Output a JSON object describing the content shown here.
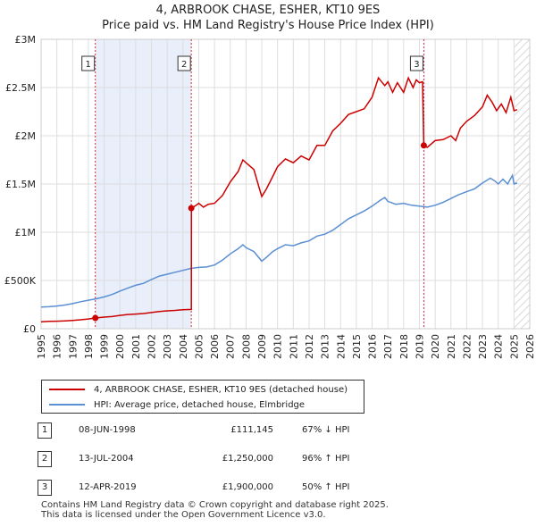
{
  "chart_data": {
    "type": "line",
    "title": "4, ARBROOK CHASE, ESHER, KT10 9ES",
    "subtitle": "Price paid vs. HM Land Registry's House Price Index (HPI)",
    "xlim": [
      1995,
      2026
    ],
    "ylim": [
      0,
      3000000
    ],
    "x_ticks": [
      "1995",
      "1996",
      "1997",
      "1998",
      "1999",
      "2000",
      "2001",
      "2002",
      "2003",
      "2004",
      "2005",
      "2006",
      "2007",
      "2008",
      "2009",
      "2010",
      "2011",
      "2012",
      "2013",
      "2014",
      "2015",
      "2016",
      "2017",
      "2018",
      "2019",
      "2020",
      "2021",
      "2022",
      "2023",
      "2024",
      "2025",
      "2026"
    ],
    "y_ticks": [
      {
        "value": 0,
        "label": "£0"
      },
      {
        "value": 500000,
        "label": "£500K"
      },
      {
        "value": 1000000,
        "label": "£1M"
      },
      {
        "value": 1500000,
        "label": "£1.5M"
      },
      {
        "value": 2000000,
        "label": "£2M"
      },
      {
        "value": 2500000,
        "label": "£2.5M"
      },
      {
        "value": 3000000,
        "label": "£3M"
      }
    ],
    "shaded_periods": [
      [
        1998.44,
        2004.53
      ],
      [
        2019.28,
        2019.35
      ]
    ],
    "future_hatch_from": 2025.0,
    "series": [
      {
        "name": "4, ARBROOK CHASE, ESHER, KT10 9ES (detached house)",
        "color": "#cc0000",
        "points": [
          [
            1995,
            72000
          ],
          [
            1995.5,
            76000
          ],
          [
            1996,
            78000
          ],
          [
            1996.5,
            81000
          ],
          [
            1997,
            86000
          ],
          [
            1997.5,
            93000
          ],
          [
            1998,
            101000
          ],
          [
            1998.44,
            111145
          ],
          [
            1998.6,
            113000
          ],
          [
            1999,
            120000
          ],
          [
            1999.5,
            126000
          ],
          [
            2000,
            138000
          ],
          [
            2000.5,
            147000
          ],
          [
            2001,
            152000
          ],
          [
            2001.5,
            157000
          ],
          [
            2002,
            168000
          ],
          [
            2002.5,
            178000
          ],
          [
            2003,
            185000
          ],
          [
            2003.5,
            190000
          ],
          [
            2004,
            196000
          ],
          [
            2004.53,
            200000
          ],
          [
            2004.54,
            1250000
          ],
          [
            2004.8,
            1275000
          ],
          [
            2005,
            1300000
          ],
          [
            2005.3,
            1260000
          ],
          [
            2005.6,
            1290000
          ],
          [
            2006,
            1300000
          ],
          [
            2006.5,
            1380000
          ],
          [
            2007,
            1520000
          ],
          [
            2007.5,
            1630000
          ],
          [
            2007.8,
            1750000
          ],
          [
            2008,
            1720000
          ],
          [
            2008.5,
            1650000
          ],
          [
            2008.8,
            1480000
          ],
          [
            2009,
            1370000
          ],
          [
            2009.3,
            1450000
          ],
          [
            2009.7,
            1580000
          ],
          [
            2010,
            1680000
          ],
          [
            2010.5,
            1760000
          ],
          [
            2011,
            1720000
          ],
          [
            2011.5,
            1790000
          ],
          [
            2012,
            1750000
          ],
          [
            2012.5,
            1900000
          ],
          [
            2013,
            1900000
          ],
          [
            2013.5,
            2050000
          ],
          [
            2014,
            2130000
          ],
          [
            2014.5,
            2220000
          ],
          [
            2015,
            2250000
          ],
          [
            2015.5,
            2280000
          ],
          [
            2016,
            2400000
          ],
          [
            2016.4,
            2600000
          ],
          [
            2016.8,
            2520000
          ],
          [
            2017,
            2560000
          ],
          [
            2017.3,
            2450000
          ],
          [
            2017.6,
            2550000
          ],
          [
            2018,
            2450000
          ],
          [
            2018.3,
            2600000
          ],
          [
            2018.6,
            2500000
          ],
          [
            2018.8,
            2580000
          ],
          [
            2019.0,
            2550000
          ],
          [
            2019.2,
            2560000
          ],
          [
            2019.28,
            1900000
          ],
          [
            2019.5,
            1880000
          ],
          [
            2020,
            1950000
          ],
          [
            2020.5,
            1960000
          ],
          [
            2021,
            2000000
          ],
          [
            2021.3,
            1950000
          ],
          [
            2021.6,
            2080000
          ],
          [
            2022,
            2150000
          ],
          [
            2022.5,
            2210000
          ],
          [
            2023,
            2300000
          ],
          [
            2023.3,
            2420000
          ],
          [
            2023.6,
            2350000
          ],
          [
            2023.9,
            2260000
          ],
          [
            2024.2,
            2330000
          ],
          [
            2024.5,
            2240000
          ],
          [
            2024.8,
            2400000
          ],
          [
            2025,
            2260000
          ],
          [
            2025.2,
            2270000
          ]
        ]
      },
      {
        "name": "HPI: Average price, detached house, Elmbridge",
        "color": "#5b8fd4",
        "points": [
          [
            1995,
            225000
          ],
          [
            1995.5,
            228000
          ],
          [
            1996,
            235000
          ],
          [
            1996.5,
            245000
          ],
          [
            1997,
            260000
          ],
          [
            1997.5,
            280000
          ],
          [
            1998,
            295000
          ],
          [
            1998.5,
            310000
          ],
          [
            1999,
            330000
          ],
          [
            1999.5,
            355000
          ],
          [
            2000,
            390000
          ],
          [
            2000.5,
            420000
          ],
          [
            2001,
            450000
          ],
          [
            2001.5,
            470000
          ],
          [
            2002,
            510000
          ],
          [
            2002.5,
            545000
          ],
          [
            2003,
            565000
          ],
          [
            2003.5,
            585000
          ],
          [
            2004,
            605000
          ],
          [
            2004.5,
            625000
          ],
          [
            2005,
            635000
          ],
          [
            2005.5,
            640000
          ],
          [
            2006,
            660000
          ],
          [
            2006.5,
            710000
          ],
          [
            2007,
            775000
          ],
          [
            2007.5,
            830000
          ],
          [
            2007.8,
            870000
          ],
          [
            2008,
            840000
          ],
          [
            2008.5,
            800000
          ],
          [
            2009,
            700000
          ],
          [
            2009.3,
            740000
          ],
          [
            2009.7,
            800000
          ],
          [
            2010,
            830000
          ],
          [
            2010.5,
            870000
          ],
          [
            2011,
            860000
          ],
          [
            2011.5,
            890000
          ],
          [
            2012,
            910000
          ],
          [
            2012.5,
            960000
          ],
          [
            2013,
            980000
          ],
          [
            2013.5,
            1020000
          ],
          [
            2014,
            1080000
          ],
          [
            2014.5,
            1140000
          ],
          [
            2015,
            1180000
          ],
          [
            2015.5,
            1220000
          ],
          [
            2016,
            1270000
          ],
          [
            2016.5,
            1330000
          ],
          [
            2016.8,
            1360000
          ],
          [
            2017,
            1320000
          ],
          [
            2017.5,
            1290000
          ],
          [
            2018,
            1300000
          ],
          [
            2018.5,
            1280000
          ],
          [
            2019,
            1270000
          ],
          [
            2019.5,
            1260000
          ],
          [
            2020,
            1280000
          ],
          [
            2020.5,
            1310000
          ],
          [
            2021,
            1350000
          ],
          [
            2021.5,
            1390000
          ],
          [
            2022,
            1420000
          ],
          [
            2022.5,
            1450000
          ],
          [
            2023,
            1510000
          ],
          [
            2023.5,
            1560000
          ],
          [
            2023.8,
            1530000
          ],
          [
            2024,
            1500000
          ],
          [
            2024.3,
            1550000
          ],
          [
            2024.6,
            1500000
          ],
          [
            2024.9,
            1590000
          ],
          [
            2025,
            1500000
          ],
          [
            2025.2,
            1510000
          ]
        ]
      }
    ],
    "sale_markers": [
      {
        "label": "1",
        "x": 1998.44,
        "y": 111145
      },
      {
        "label": "2",
        "x": 2004.53,
        "y": 1250000
      },
      {
        "label": "3",
        "x": 2019.28,
        "y": 1900000
      }
    ]
  },
  "legend": {
    "property_label": "4, ARBROOK CHASE, ESHER, KT10 9ES (detached house)",
    "hpi_label": "HPI: Average price, detached house, Elmbridge"
  },
  "sales": [
    {
      "num": "1",
      "date": "08-JUN-1998",
      "price": "£111,145",
      "hpi": "67% ↓ HPI"
    },
    {
      "num": "2",
      "date": "13-JUL-2004",
      "price": "£1,250,000",
      "hpi": "96% ↑ HPI"
    },
    {
      "num": "3",
      "date": "12-APR-2019",
      "price": "£1,900,000",
      "hpi": "50% ↑ HPI"
    }
  ],
  "footer": {
    "line1": "Contains HM Land Registry data © Crown copyright and database right 2025.",
    "line2": "This data is licensed under the Open Government Licence v3.0."
  }
}
